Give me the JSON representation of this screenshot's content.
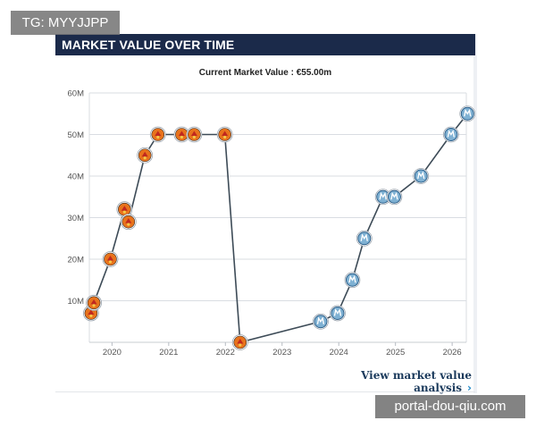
{
  "watermarks": {
    "top_left": "TG: MYYJJPP",
    "bottom_right": "portal-dou-qiu.com"
  },
  "widget": {
    "header": "MARKET VALUE OVER TIME",
    "subtitle": "Current Market Value : €55.00m",
    "footer_link": "View market value analysis",
    "footer_chevron": "›"
  },
  "chart_data": {
    "type": "line",
    "title": "Current Market Value : €55.00m",
    "xlabel": "",
    "ylabel": "",
    "xlim": [
      2019.6,
      2026.25
    ],
    "ylim": [
      0,
      60
    ],
    "x_ticks": [
      2020,
      2021,
      2022,
      2023,
      2024,
      2025,
      2026
    ],
    "x_tick_labels": [
      "2020",
      "2021",
      "2022",
      "2023",
      "2024",
      "2025",
      "2026"
    ],
    "y_ticks": [
      10,
      20,
      30,
      40,
      50,
      60
    ],
    "y_tick_labels": [
      "10M",
      "20M",
      "30M",
      "40M",
      "50M",
      "60M"
    ],
    "grid": true,
    "line_color": "#3d4b57",
    "club_colors": {
      "A": "#e8731c",
      "B": "#7fb1d3"
    },
    "series": [
      {
        "points": [
          {
            "x": 2019.63,
            "y": 7,
            "club": "A"
          },
          {
            "x": 2019.68,
            "y": 9.5,
            "club": "A"
          },
          {
            "x": 2019.97,
            "y": 20,
            "club": "A"
          },
          {
            "x": 2020.22,
            "y": 32,
            "club": "A"
          },
          {
            "x": 2020.29,
            "y": 29,
            "club": "A"
          },
          {
            "x": 2020.58,
            "y": 45,
            "club": "A"
          },
          {
            "x": 2020.81,
            "y": 50,
            "club": "A"
          },
          {
            "x": 2021.23,
            "y": 50,
            "club": "A"
          },
          {
            "x": 2021.45,
            "y": 50,
            "club": "A"
          },
          {
            "x": 2021.99,
            "y": 50,
            "club": "A"
          },
          {
            "x": 2022.26,
            "y": 0,
            "club": "A"
          },
          {
            "x": 2023.68,
            "y": 5,
            "club": "B"
          },
          {
            "x": 2023.98,
            "y": 7,
            "club": "B"
          },
          {
            "x": 2024.24,
            "y": 15,
            "club": "B"
          },
          {
            "x": 2024.45,
            "y": 25,
            "club": "B"
          },
          {
            "x": 2024.78,
            "y": 35,
            "club": "B"
          },
          {
            "x": 2024.98,
            "y": 35,
            "club": "B"
          },
          {
            "x": 2025.45,
            "y": 40,
            "club": "B"
          },
          {
            "x": 2025.98,
            "y": 50,
            "club": "B"
          },
          {
            "x": 2026.27,
            "y": 55,
            "club": "B"
          }
        ]
      }
    ]
  }
}
